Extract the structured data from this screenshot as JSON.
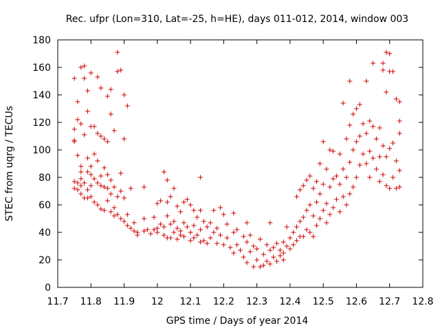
{
  "chart_data": {
    "type": "scatter",
    "title": "Rec. ufpr (Lon=310, Lat=-25, h=HE), days 011-012, 2014, window 003",
    "xlabel": "GPS time / Days of year 2014",
    "ylabel": "STEC from uqrg / TECUs",
    "xlim": [
      11.7,
      12.8
    ],
    "ylim": [
      0,
      180
    ],
    "xticks": [
      11.7,
      11.8,
      11.9,
      12.0,
      12.1,
      12.2,
      12.3,
      12.4,
      12.5,
      12.6,
      12.7,
      12.8
    ],
    "xtick_labels": [
      "11.7",
      "11.8",
      "11.9",
      "12",
      "12.1",
      "12.2",
      "12.3",
      "12.4",
      "12.5",
      "12.6",
      "12.7",
      "12.8"
    ],
    "yticks": [
      0,
      20,
      40,
      60,
      80,
      100,
      120,
      140,
      160,
      180
    ],
    "ytick_labels": [
      "0",
      "20",
      "40",
      "60",
      "80",
      "100",
      "120",
      "140",
      "160",
      "180"
    ],
    "grid": false,
    "marker": "+",
    "color": "#cc0000",
    "series": [
      {
        "name": "STEC",
        "points": [
          [
            11.75,
            152
          ],
          [
            11.75,
            115
          ],
          [
            11.75,
            107
          ],
          [
            11.75,
            106
          ],
          [
            11.75,
            77
          ],
          [
            11.75,
            72
          ],
          [
            11.76,
            135
          ],
          [
            11.76,
            122
          ],
          [
            11.76,
            96
          ],
          [
            11.76,
            76
          ],
          [
            11.76,
            71
          ],
          [
            11.77,
            160
          ],
          [
            11.77,
            119
          ],
          [
            11.77,
            88
          ],
          [
            11.77,
            84
          ],
          [
            11.77,
            79
          ],
          [
            11.77,
            74
          ],
          [
            11.77,
            68
          ],
          [
            11.78,
            161
          ],
          [
            11.78,
            152
          ],
          [
            11.78,
            111
          ],
          [
            11.78,
            76
          ],
          [
            11.78,
            65
          ],
          [
            11.79,
            143
          ],
          [
            11.79,
            128
          ],
          [
            11.79,
            94
          ],
          [
            11.79,
            84
          ],
          [
            11.79,
            71
          ],
          [
            11.79,
            65
          ],
          [
            11.8,
            156
          ],
          [
            11.8,
            117
          ],
          [
            11.8,
            88
          ],
          [
            11.8,
            82
          ],
          [
            11.8,
            74
          ],
          [
            11.8,
            66
          ],
          [
            11.81,
            117
          ],
          [
            11.81,
            97
          ],
          [
            11.81,
            79
          ],
          [
            11.81,
            62
          ],
          [
            11.82,
            153
          ],
          [
            11.82,
            112
          ],
          [
            11.82,
            92
          ],
          [
            11.82,
            76
          ],
          [
            11.82,
            60
          ],
          [
            11.83,
            145
          ],
          [
            11.83,
            110
          ],
          [
            11.83,
            81
          ],
          [
            11.83,
            74
          ],
          [
            11.83,
            57
          ],
          [
            11.84,
            108
          ],
          [
            11.84,
            87
          ],
          [
            11.84,
            73
          ],
          [
            11.84,
            56
          ],
          [
            11.85,
            139
          ],
          [
            11.85,
            106
          ],
          [
            11.85,
            82
          ],
          [
            11.85,
            72
          ],
          [
            11.85,
            63
          ],
          [
            11.86,
            144
          ],
          [
            11.86,
            126
          ],
          [
            11.86,
            78
          ],
          [
            11.86,
            68
          ],
          [
            11.86,
            55
          ],
          [
            11.87,
            114
          ],
          [
            11.87,
            73
          ],
          [
            11.87,
            58
          ],
          [
            11.87,
            52
          ],
          [
            11.88,
            171
          ],
          [
            11.88,
            157
          ],
          [
            11.88,
            66
          ],
          [
            11.88,
            53
          ],
          [
            11.89,
            158
          ],
          [
            11.89,
            83
          ],
          [
            11.89,
            70
          ],
          [
            11.89,
            50
          ],
          [
            11.9,
            140
          ],
          [
            11.9,
            108
          ],
          [
            11.9,
            65
          ],
          [
            11.9,
            48
          ],
          [
            11.91,
            132
          ],
          [
            11.91,
            53
          ],
          [
            11.91,
            45
          ],
          [
            11.92,
            72
          ],
          [
            11.92,
            43
          ],
          [
            11.93,
            47
          ],
          [
            11.93,
            41
          ],
          [
            11.94,
            40
          ],
          [
            11.94,
            38
          ],
          [
            11.96,
            73
          ],
          [
            11.96,
            50
          ],
          [
            11.96,
            41
          ],
          [
            11.97,
            42
          ],
          [
            11.98,
            39
          ],
          [
            11.99,
            51
          ],
          [
            11.99,
            42
          ],
          [
            12.0,
            61
          ],
          [
            12.0,
            43
          ],
          [
            12.0,
            40
          ],
          [
            12.01,
            63
          ],
          [
            12.01,
            46
          ],
          [
            12.02,
            84
          ],
          [
            12.02,
            44
          ],
          [
            12.02,
            38
          ],
          [
            12.03,
            78
          ],
          [
            12.03,
            62
          ],
          [
            12.03,
            52
          ],
          [
            12.03,
            36
          ],
          [
            12.04,
            66
          ],
          [
            12.04,
            46
          ],
          [
            12.04,
            36
          ],
          [
            12.05,
            72
          ],
          [
            12.05,
            48
          ],
          [
            12.05,
            40
          ],
          [
            12.06,
            59
          ],
          [
            12.06,
            43
          ],
          [
            12.06,
            35
          ],
          [
            12.07,
            55
          ],
          [
            12.07,
            41
          ],
          [
            12.07,
            38
          ],
          [
            12.08,
            62
          ],
          [
            12.08,
            47
          ],
          [
            12.08,
            37
          ],
          [
            12.09,
            64
          ],
          [
            12.09,
            44
          ],
          [
            12.1,
            60
          ],
          [
            12.1,
            40
          ],
          [
            12.1,
            34
          ],
          [
            12.11,
            56
          ],
          [
            12.11,
            45
          ],
          [
            12.11,
            36
          ],
          [
            12.12,
            51
          ],
          [
            12.12,
            38
          ],
          [
            12.13,
            80
          ],
          [
            12.13,
            56
          ],
          [
            12.13,
            42
          ],
          [
            12.13,
            33
          ],
          [
            12.14,
            48
          ],
          [
            12.14,
            34
          ],
          [
            12.15,
            44
          ],
          [
            12.15,
            32
          ],
          [
            12.16,
            47
          ],
          [
            12.16,
            36
          ],
          [
            12.17,
            56
          ],
          [
            12.17,
            40
          ],
          [
            12.18,
            43
          ],
          [
            12.18,
            32
          ],
          [
            12.19,
            58
          ],
          [
            12.19,
            38
          ],
          [
            12.2,
            53
          ],
          [
            12.2,
            31
          ],
          [
            12.21,
            46
          ],
          [
            12.21,
            36
          ],
          [
            12.22,
            29
          ],
          [
            12.23,
            54
          ],
          [
            12.23,
            40
          ],
          [
            12.23,
            25
          ],
          [
            12.24,
            42
          ],
          [
            12.24,
            31
          ],
          [
            12.25,
            27
          ],
          [
            12.26,
            37
          ],
          [
            12.26,
            22
          ],
          [
            12.27,
            47
          ],
          [
            12.27,
            33
          ],
          [
            12.27,
            18
          ],
          [
            12.28,
            38
          ],
          [
            12.28,
            26
          ],
          [
            12.29,
            30
          ],
          [
            12.29,
            15
          ],
          [
            12.3,
            28
          ],
          [
            12.3,
            20
          ],
          [
            12.31,
            35
          ],
          [
            12.31,
            15
          ],
          [
            12.32,
            24
          ],
          [
            12.32,
            16
          ],
          [
            12.33,
            31
          ],
          [
            12.33,
            19
          ],
          [
            12.34,
            47
          ],
          [
            12.34,
            27
          ],
          [
            12.34,
            17
          ],
          [
            12.35,
            29
          ],
          [
            12.35,
            22
          ],
          [
            12.36,
            32
          ],
          [
            12.36,
            19
          ],
          [
            12.37,
            27
          ],
          [
            12.37,
            23
          ],
          [
            12.38,
            33
          ],
          [
            12.38,
            25
          ],
          [
            12.38,
            20
          ],
          [
            12.39,
            44
          ],
          [
            12.39,
            30
          ],
          [
            12.4,
            36
          ],
          [
            12.4,
            28
          ],
          [
            12.41,
            40
          ],
          [
            12.41,
            31
          ],
          [
            12.42,
            66
          ],
          [
            12.42,
            44
          ],
          [
            12.42,
            34
          ],
          [
            12.43,
            71
          ],
          [
            12.43,
            48
          ],
          [
            12.43,
            37
          ],
          [
            12.44,
            74
          ],
          [
            12.44,
            51
          ],
          [
            12.44,
            37
          ],
          [
            12.45,
            78
          ],
          [
            12.45,
            56
          ],
          [
            12.45,
            42
          ],
          [
            12.46,
            81
          ],
          [
            12.46,
            60
          ],
          [
            12.46,
            40
          ],
          [
            12.47,
            72
          ],
          [
            12.47,
            52
          ],
          [
            12.47,
            37
          ],
          [
            12.48,
            77
          ],
          [
            12.48,
            62
          ],
          [
            12.48,
            45
          ],
          [
            12.49,
            90
          ],
          [
            12.49,
            68
          ],
          [
            12.49,
            50
          ],
          [
            12.5,
            106
          ],
          [
            12.5,
            75
          ],
          [
            12.5,
            56
          ],
          [
            12.51,
            86
          ],
          [
            12.51,
            61
          ],
          [
            12.51,
            47
          ],
          [
            12.52,
            100
          ],
          [
            12.52,
            73
          ],
          [
            12.52,
            53
          ],
          [
            12.53,
            99
          ],
          [
            12.53,
            79
          ],
          [
            12.53,
            58
          ],
          [
            12.54,
            81
          ],
          [
            12.54,
            64
          ],
          [
            12.55,
            97
          ],
          [
            12.55,
            75
          ],
          [
            12.55,
            55
          ],
          [
            12.56,
            134
          ],
          [
            12.56,
            86
          ],
          [
            12.56,
            66
          ],
          [
            12.57,
            108
          ],
          [
            12.57,
            80
          ],
          [
            12.57,
            60
          ],
          [
            12.58,
            150
          ],
          [
            12.58,
            118
          ],
          [
            12.58,
            91
          ],
          [
            12.58,
            68
          ],
          [
            12.59,
            126
          ],
          [
            12.59,
            100
          ],
          [
            12.59,
            73
          ],
          [
            12.6,
            130
          ],
          [
            12.6,
            106
          ],
          [
            12.6,
            80
          ],
          [
            12.61,
            133
          ],
          [
            12.61,
            110
          ],
          [
            12.61,
            89
          ],
          [
            12.62,
            119
          ],
          [
            12.62,
            97
          ],
          [
            12.63,
            150
          ],
          [
            12.63,
            112
          ],
          [
            12.63,
            90
          ],
          [
            12.64,
            121
          ],
          [
            12.64,
            99
          ],
          [
            12.64,
            80
          ],
          [
            12.65,
            163
          ],
          [
            12.65,
            117
          ],
          [
            12.65,
            94
          ],
          [
            12.66,
            108
          ],
          [
            12.66,
            86
          ],
          [
            12.67,
            116
          ],
          [
            12.67,
            95
          ],
          [
            12.67,
            77
          ],
          [
            12.68,
            163
          ],
          [
            12.68,
            158
          ],
          [
            12.68,
            103
          ],
          [
            12.68,
            82
          ],
          [
            12.69,
            171
          ],
          [
            12.69,
            142
          ],
          [
            12.69,
            95
          ],
          [
            12.69,
            74
          ],
          [
            12.7,
            170
          ],
          [
            12.7,
            157
          ],
          [
            12.7,
            101
          ],
          [
            12.7,
            72
          ],
          [
            12.71,
            157
          ],
          [
            12.71,
            105
          ],
          [
            12.71,
            80
          ],
          [
            12.72,
            137
          ],
          [
            12.72,
            92
          ],
          [
            12.72,
            72
          ],
          [
            12.73,
            135
          ],
          [
            12.73,
            121
          ],
          [
            12.73,
            112
          ],
          [
            12.73,
            85
          ],
          [
            12.73,
            73
          ]
        ]
      }
    ]
  }
}
